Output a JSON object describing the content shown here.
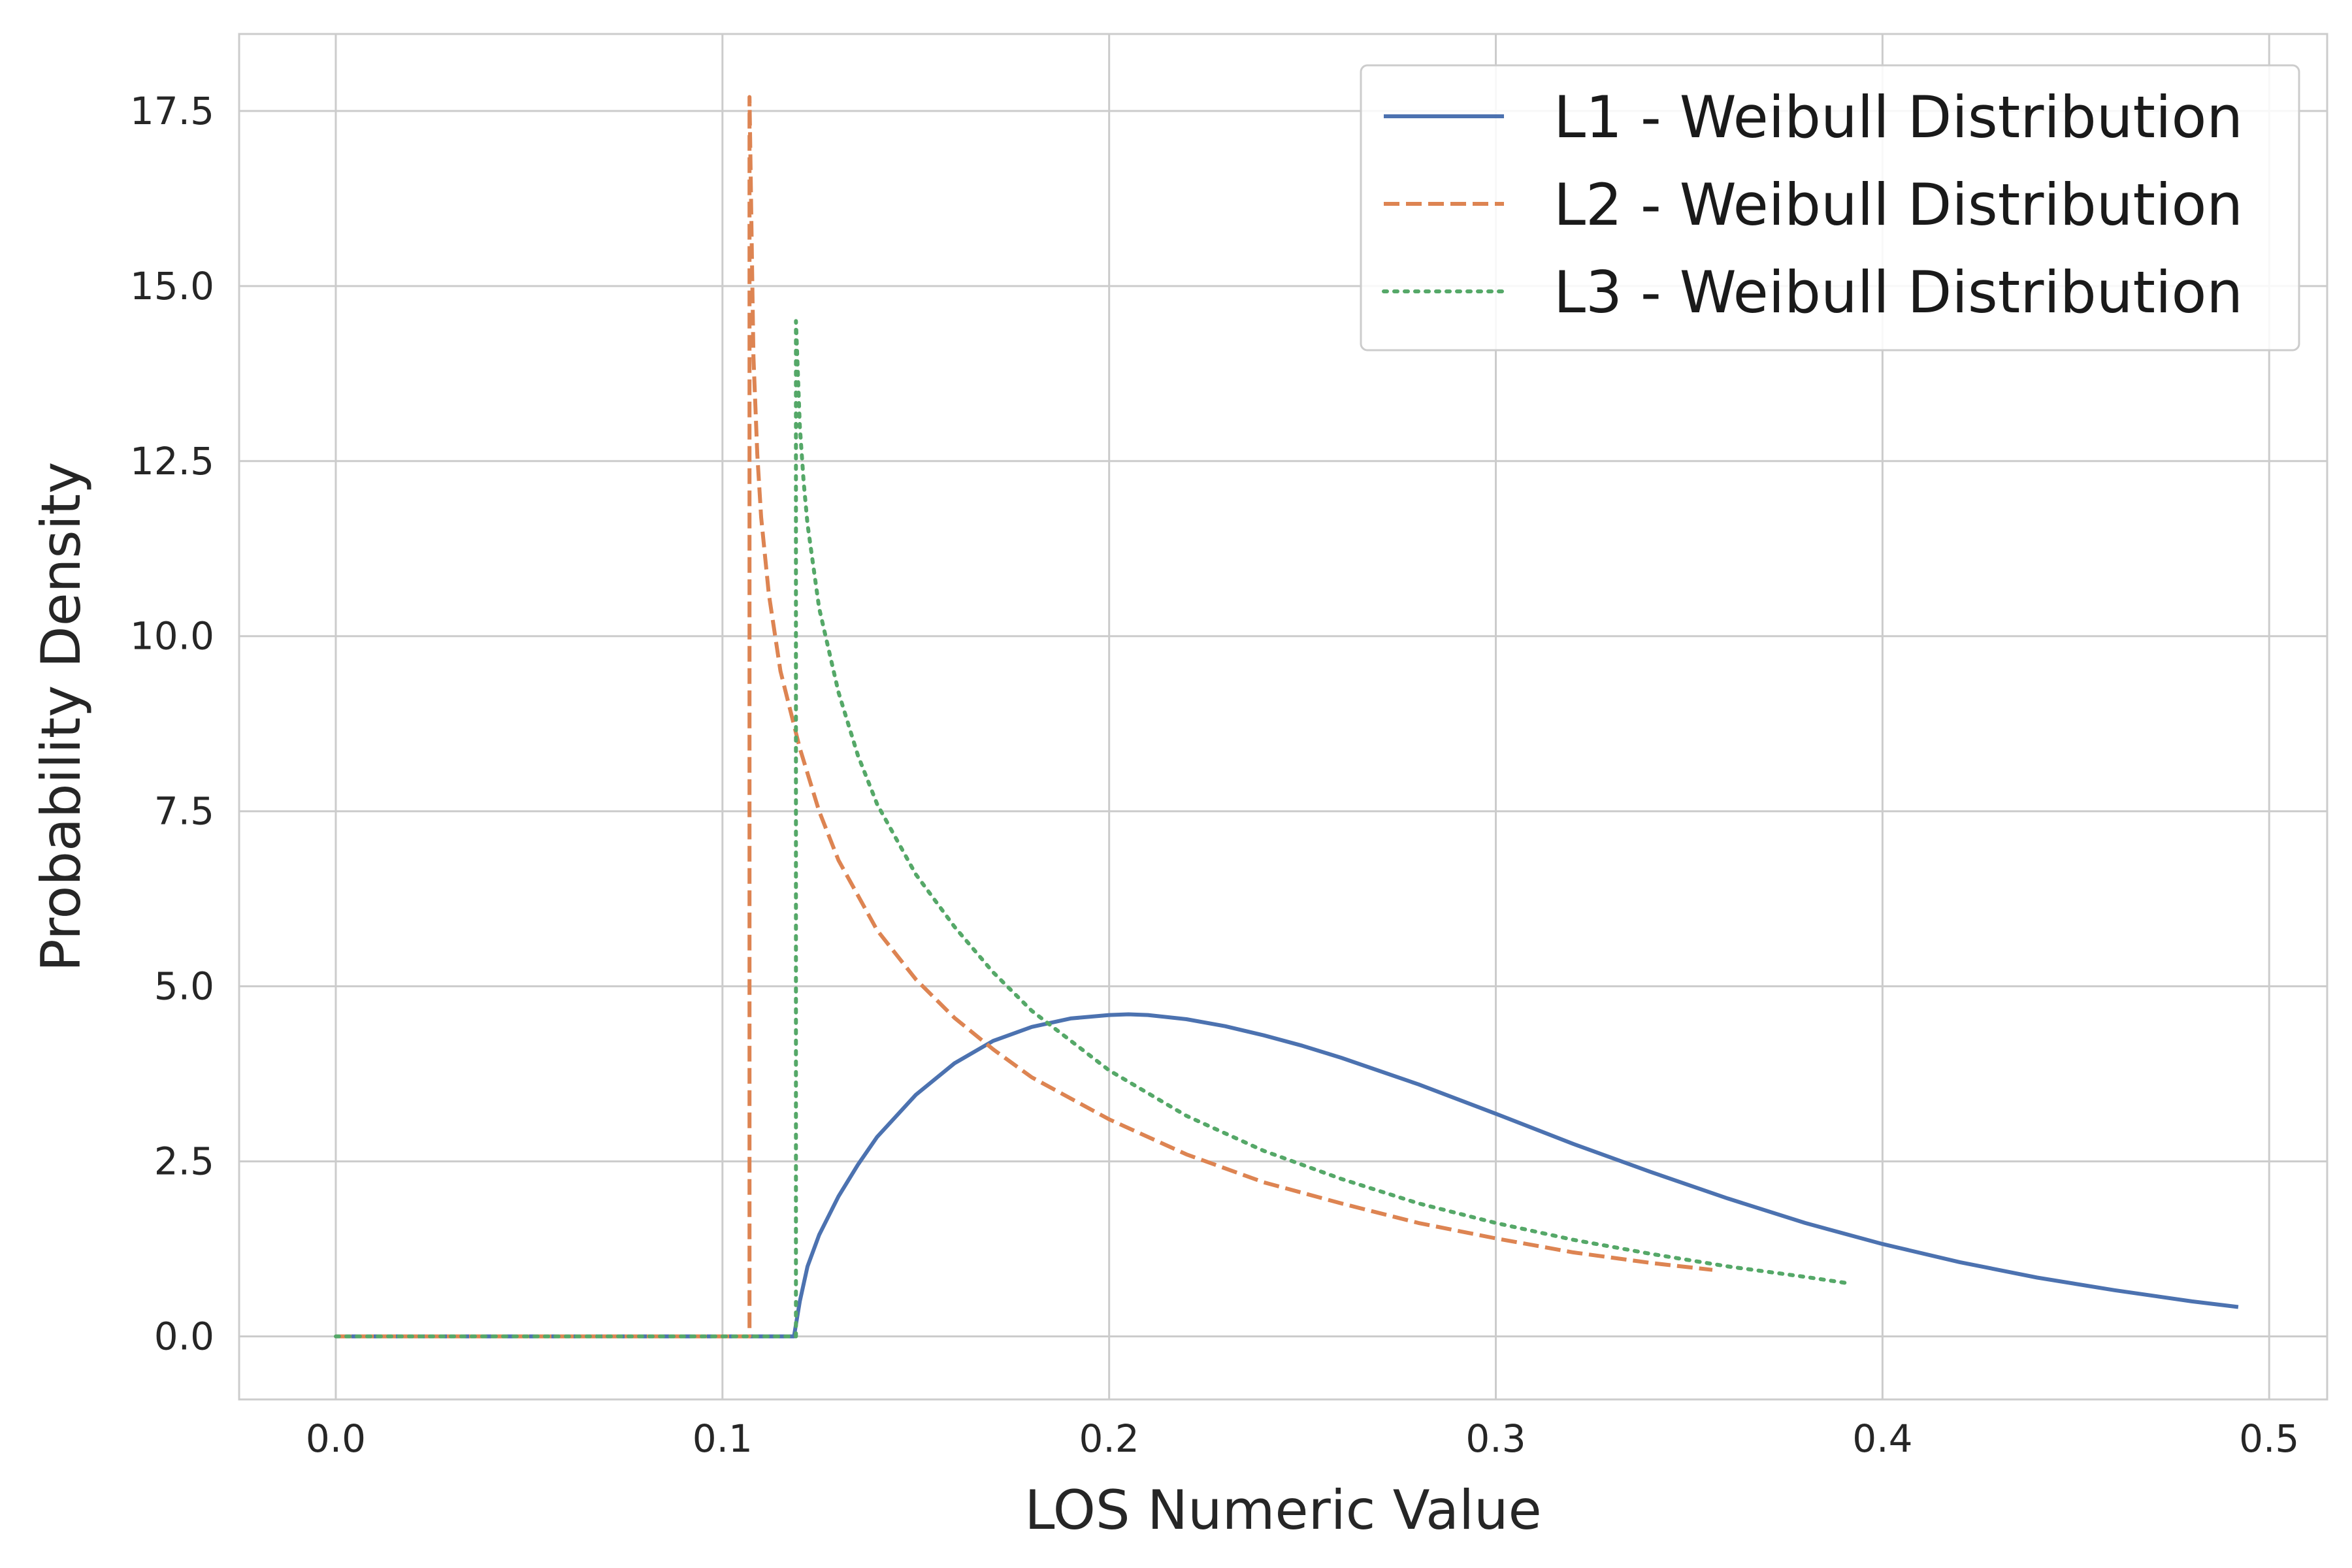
{
  "chart_data": {
    "type": "line",
    "title": "",
    "xlabel": "LOS Numeric Value",
    "ylabel": "Probability Density",
    "xlim": [
      -0.025,
      0.515
    ],
    "ylim": [
      -0.9,
      18.6
    ],
    "grid": true,
    "legend_position": "top-right",
    "x_ticks": [
      {
        "value": 0.0,
        "label": "0.0"
      },
      {
        "value": 0.1,
        "label": "0.1"
      },
      {
        "value": 0.2,
        "label": "0.2"
      },
      {
        "value": 0.3,
        "label": "0.3"
      },
      {
        "value": 0.4,
        "label": "0.4"
      },
      {
        "value": 0.5,
        "label": "0.5"
      }
    ],
    "y_ticks": [
      {
        "value": 0.0,
        "label": "0.0"
      },
      {
        "value": 2.5,
        "label": "2.5"
      },
      {
        "value": 5.0,
        "label": "5.0"
      },
      {
        "value": 7.5,
        "label": "7.5"
      },
      {
        "value": 10.0,
        "label": "10.0"
      },
      {
        "value": 12.5,
        "label": "12.5"
      },
      {
        "value": 15.0,
        "label": "15.0"
      },
      {
        "value": 17.5,
        "label": "17.5"
      }
    ],
    "series": [
      {
        "name": "L1 - Weibull Distribution",
        "color": "#4c72b0",
        "dash": "solid",
        "x": [
          0.0,
          0.05,
          0.1,
          0.118,
          0.1185,
          0.12,
          0.122,
          0.125,
          0.13,
          0.135,
          0.14,
          0.15,
          0.16,
          0.17,
          0.18,
          0.19,
          0.2,
          0.205,
          0.21,
          0.22,
          0.23,
          0.24,
          0.25,
          0.26,
          0.28,
          0.3,
          0.32,
          0.34,
          0.36,
          0.38,
          0.4,
          0.42,
          0.44,
          0.46,
          0.48,
          0.492
        ],
        "y": [
          0.0,
          0.0,
          0.0,
          0.0,
          0.0,
          0.5,
          1.0,
          1.45,
          2.0,
          2.45,
          2.85,
          3.45,
          3.9,
          4.22,
          4.42,
          4.54,
          4.59,
          4.6,
          4.59,
          4.53,
          4.43,
          4.3,
          4.15,
          3.98,
          3.6,
          3.18,
          2.75,
          2.35,
          1.97,
          1.62,
          1.32,
          1.06,
          0.84,
          0.66,
          0.5,
          0.42
        ]
      },
      {
        "name": "L2 - Weibull Distribution",
        "color": "#dd8452",
        "dash": "dashed",
        "x": [
          0.0,
          0.05,
          0.1,
          0.107,
          0.107,
          0.108,
          0.109,
          0.11,
          0.112,
          0.115,
          0.12,
          0.125,
          0.13,
          0.14,
          0.15,
          0.16,
          0.17,
          0.18,
          0.2,
          0.22,
          0.24,
          0.26,
          0.28,
          0.3,
          0.32,
          0.34,
          0.356
        ],
        "y": [
          0.0,
          0.0,
          0.0,
          0.0,
          17.7,
          14.0,
          12.6,
          11.7,
          10.6,
          9.5,
          8.4,
          7.5,
          6.8,
          5.8,
          5.1,
          4.55,
          4.1,
          3.7,
          3.1,
          2.6,
          2.2,
          1.9,
          1.62,
          1.4,
          1.2,
          1.05,
          0.95
        ]
      },
      {
        "name": "L3 - Weibull Distribution",
        "color": "#55a868",
        "dash": "dotted",
        "x": [
          0.0,
          0.05,
          0.1,
          0.119,
          0.119,
          0.12,
          0.121,
          0.122,
          0.125,
          0.13,
          0.135,
          0.14,
          0.15,
          0.16,
          0.17,
          0.18,
          0.2,
          0.22,
          0.24,
          0.26,
          0.28,
          0.3,
          0.32,
          0.34,
          0.36,
          0.38,
          0.391
        ],
        "y": [
          0.0,
          0.0,
          0.0,
          0.0,
          14.5,
          13.0,
          12.2,
          11.6,
          10.4,
          9.2,
          8.3,
          7.6,
          6.6,
          5.85,
          5.2,
          4.65,
          3.8,
          3.15,
          2.65,
          2.25,
          1.9,
          1.62,
          1.38,
          1.18,
          1.0,
          0.85,
          0.76
        ]
      }
    ]
  }
}
